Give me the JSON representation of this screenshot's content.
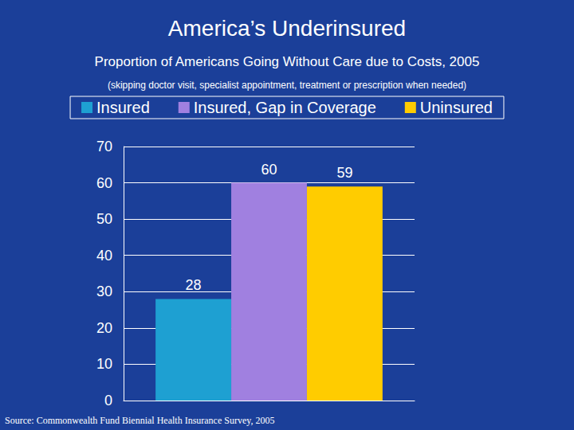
{
  "chart_data": {
    "type": "bar",
    "title": "America’s Underinsured",
    "subtitle": "Proportion of Americans Going Without Care due to Costs, 2005",
    "note": "(skipping doctor visit, specialist appointment, treatment or prescription when needed)",
    "source": "Source: Commonwealth Fund Biennial Health Insurance Survey, 2005",
    "categories": [
      null
    ],
    "series": [
      {
        "name": "Insured",
        "color": "#1ea0d2",
        "values": [
          28
        ]
      },
      {
        "name": "Insured, Gap in Coverage",
        "color": "#a080e0",
        "values": [
          60
        ]
      },
      {
        "name": "Uninsured",
        "color": "#ffcc00",
        "values": [
          59
        ]
      }
    ],
    "ylim": [
      0,
      70
    ],
    "yticks": [
      0,
      10,
      20,
      30,
      40,
      50,
      60,
      70
    ],
    "grid": true,
    "legend": "top",
    "data_labels": true
  }
}
